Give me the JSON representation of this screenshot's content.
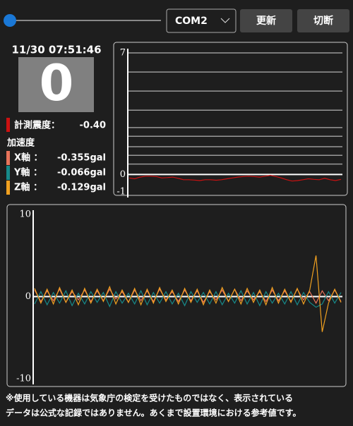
{
  "controls": {
    "port": "COM2",
    "buttons": [
      "更新",
      "切断"
    ]
  },
  "status": {
    "datetime": "11/30 07:51:46",
    "intensity_display": "0",
    "intensity_label": "計測震度：",
    "intensity_value": "-0.40",
    "accel_label": "加速度",
    "axes": [
      {
        "label": "X軸 ：",
        "value": "-0.355gal",
        "color": "#e8735a"
      },
      {
        "label": "Y軸 ：",
        "value": "-0.066gal",
        "color": "#178a8a"
      },
      {
        "label": "Z軸 ：",
        "value": "-0.129gal",
        "color": "#f0a020"
      }
    ]
  },
  "intensity_chart": {
    "type": "line",
    "ylim": [
      -1,
      7
    ],
    "yticks": [
      7,
      0,
      -1
    ],
    "grid_lines": [
      0.6,
      1.1,
      1.6,
      2.2,
      2.7,
      3.7,
      4.8,
      5.9,
      7
    ],
    "color": "#cc1111",
    "values": [
      -0.2,
      -0.25,
      -0.15,
      -0.1,
      -0.1,
      -0.12,
      -0.2,
      -0.18,
      -0.15,
      -0.22,
      -0.3,
      -0.3,
      -0.32,
      -0.35,
      -0.3,
      -0.3,
      -0.33,
      -0.3,
      -0.25,
      -0.2,
      -0.15,
      -0.12,
      -0.1,
      -0.12,
      -0.15,
      -0.1,
      -0.05,
      -0.12,
      -0.2,
      -0.3,
      -0.38,
      -0.35,
      -0.3,
      -0.25,
      -0.28,
      -0.3,
      -0.22,
      -0.3,
      -0.35,
      -0.28
    ]
  },
  "wave_chart": {
    "type": "line",
    "ylim": [
      -10,
      10
    ],
    "yticks": [
      10,
      0,
      -10
    ],
    "series": [
      {
        "color": "#e8735a",
        "values": [
          0.8,
          -0.6,
          0.7,
          -0.5,
          0.9,
          -0.7,
          0.6,
          -0.4,
          0.8,
          -0.6,
          0.7,
          -0.5,
          0.9,
          -0.3,
          0.6,
          -0.7,
          0.8,
          -0.5,
          0.7,
          -0.6,
          0.9,
          -0.4,
          0.6,
          -0.6,
          0.8,
          -0.5,
          0.7,
          -0.7,
          0.6,
          -0.4,
          0.8,
          -0.6,
          0.9,
          -0.5,
          0.7,
          -0.4,
          0.6,
          -0.6,
          0.8,
          -0.5,
          0.7,
          -0.6,
          0.9,
          -0.4,
          0.6,
          -0.8,
          0.7,
          -0.5,
          0.8,
          -0.6
        ]
      },
      {
        "color": "#178a8a",
        "values": [
          -0.9,
          0.6,
          -1.0,
          0.5,
          -0.8,
          0.7,
          -1.1,
          0.4,
          -0.9,
          0.6,
          -0.7,
          0.5,
          -1.2,
          0.6,
          -0.8,
          0.4,
          -0.9,
          0.7,
          -1.0,
          0.5,
          -0.8,
          0.6,
          -0.9,
          0.4,
          -1.1,
          0.6,
          -0.7,
          0.5,
          -0.9,
          0.6,
          -1.0,
          0.4,
          -0.8,
          0.7,
          -0.9,
          0.5,
          -1.1,
          0.6,
          -0.8,
          0.4,
          -0.9,
          0.6,
          -1.0,
          0.5,
          -0.7,
          -1.3,
          -0.9,
          0.6,
          -0.8,
          0.5
        ]
      },
      {
        "color": "#f0a020",
        "values": [
          1.0,
          -0.8,
          0.9,
          -0.9,
          1.1,
          -0.7,
          0.8,
          -1.0,
          1.0,
          -0.8,
          0.9,
          -0.6,
          1.2,
          -0.9,
          0.8,
          -0.7,
          1.0,
          -1.0,
          0.9,
          -0.8,
          1.1,
          -0.6,
          0.8,
          -0.9,
          1.0,
          -0.7,
          0.9,
          -1.0,
          0.8,
          -0.8,
          1.1,
          -0.6,
          0.9,
          -0.9,
          1.0,
          -0.7,
          0.8,
          -1.0,
          1.1,
          -0.8,
          0.9,
          -0.7,
          1.0,
          -0.9,
          0.8,
          5.0,
          -4.3,
          -0.8,
          0.9,
          -0.7
        ]
      }
    ]
  },
  "footer": [
    "※使用している機器は気象庁の検定を受けたものではなく、表示されている",
    "データは公式な記録ではありません。あくまで設置環境における参考値です。"
  ]
}
